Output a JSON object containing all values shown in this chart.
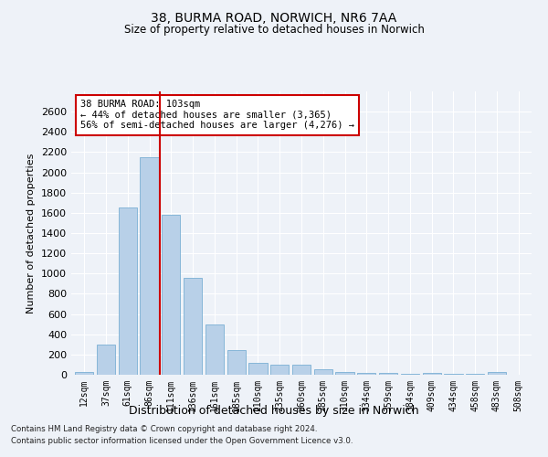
{
  "title": "38, BURMA ROAD, NORWICH, NR6 7AA",
  "subtitle": "Size of property relative to detached houses in Norwich",
  "xlabel": "Distribution of detached houses by size in Norwich",
  "ylabel": "Number of detached properties",
  "bar_color": "#b8d0e8",
  "bar_edge_color": "#7aafd4",
  "categories": [
    "12sqm",
    "37sqm",
    "61sqm",
    "86sqm",
    "111sqm",
    "136sqm",
    "161sqm",
    "185sqm",
    "210sqm",
    "235sqm",
    "260sqm",
    "285sqm",
    "310sqm",
    "334sqm",
    "359sqm",
    "384sqm",
    "409sqm",
    "434sqm",
    "458sqm",
    "483sqm",
    "508sqm"
  ],
  "values": [
    25,
    300,
    1650,
    2150,
    1580,
    960,
    500,
    245,
    120,
    100,
    100,
    50,
    25,
    20,
    15,
    5,
    20,
    5,
    5,
    25,
    0
  ],
  "bar_width": 0.85,
  "ylim": [
    0,
    2800
  ],
  "yticks": [
    0,
    200,
    400,
    600,
    800,
    1000,
    1200,
    1400,
    1600,
    1800,
    2000,
    2200,
    2400,
    2600
  ],
  "vline_x_index": 3.5,
  "vline_color": "#cc0000",
  "annotation_box_text": "38 BURMA ROAD: 103sqm\n← 44% of detached houses are smaller (3,365)\n56% of semi-detached houses are larger (4,276) →",
  "footer_line1": "Contains HM Land Registry data © Crown copyright and database right 2024.",
  "footer_line2": "Contains public sector information licensed under the Open Government Licence v3.0.",
  "background_color": "#eef2f8",
  "grid_color": "#ffffff"
}
